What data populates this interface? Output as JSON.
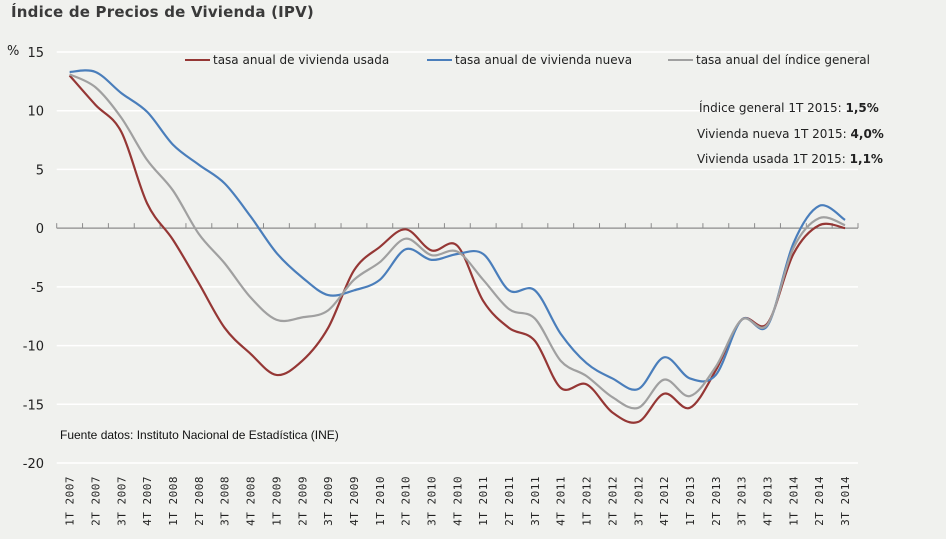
{
  "chart_data": {
    "type": "line",
    "title": "Índice de Precios de Vivienda (IPV)",
    "ylabel": "%",
    "xlabel": "",
    "ylim": [
      -20,
      15
    ],
    "yticks": [
      15,
      10,
      5,
      0,
      -5,
      -10,
      -15,
      -20
    ],
    "grid": true,
    "legend_position": "top",
    "categories": [
      "1T 2007",
      "2T 2007",
      "3T 2007",
      "4T 2007",
      "1T 2008",
      "2T 2008",
      "3T 2008",
      "4T 2008",
      "1T 2009",
      "2T 2009",
      "3T 2009",
      "4T 2009",
      "1T 2010",
      "2T 2010",
      "3T 2010",
      "4T 2010",
      "1T 2011",
      "2T 2011",
      "3T 2011",
      "4T 2011",
      "1T 2012",
      "2T 2012",
      "3T 2012",
      "4T 2012",
      "1T 2013",
      "2T 2013",
      "3T 2013",
      "4T 2013",
      "1T 2014",
      "2T 2014",
      "3T 2014"
    ],
    "series": [
      {
        "name": "tasa anual de vivienda usada",
        "color": "#953735",
        "values": [
          13.0,
          10.5,
          8.2,
          2.1,
          -1.0,
          -4.7,
          -8.5,
          -10.7,
          -12.5,
          -11.3,
          -8.5,
          -3.6,
          -1.6,
          -0.1,
          -1.9,
          -1.5,
          -6.2,
          -8.5,
          -9.6,
          -13.6,
          -13.3,
          -15.7,
          -16.5,
          -14.1,
          -15.3,
          -12.1,
          -7.8,
          -8.1,
          -2.2,
          0.25,
          0.0
        ]
      },
      {
        "name": "tasa anual de vivienda nueva",
        "color": "#4a7ebb",
        "values": [
          13.3,
          13.3,
          11.5,
          9.9,
          7.1,
          5.4,
          3.8,
          1.0,
          -2.1,
          -4.2,
          -5.7,
          -5.3,
          -4.4,
          -1.8,
          -2.7,
          -2.2,
          -2.2,
          -5.3,
          -5.3,
          -9.0,
          -11.5,
          -12.8,
          -13.7,
          -11.0,
          -12.8,
          -12.5,
          -7.8,
          -8.3,
          -1.3,
          1.9,
          0.7
        ]
      },
      {
        "name": "tasa anual del índice general",
        "color": "#a0a0a0",
        "values": [
          13.1,
          12.0,
          9.4,
          5.8,
          3.2,
          -0.5,
          -3.0,
          -5.9,
          -7.8,
          -7.6,
          -7.0,
          -4.4,
          -2.9,
          -0.9,
          -2.3,
          -2.0,
          -4.4,
          -6.9,
          -7.7,
          -11.3,
          -12.6,
          -14.4,
          -15.3,
          -12.9,
          -14.3,
          -11.8,
          -7.8,
          -8.2,
          -1.7,
          0.85,
          0.25
        ]
      }
    ],
    "annotations": [
      {
        "label": "Índice general 1T 2015: ",
        "value": "1,5%"
      },
      {
        "label": "Vivienda nueva 1T 2015: ",
        "value": "4,0%"
      },
      {
        "label": "Vivienda usada 1T 2015: ",
        "value": "1,1%"
      }
    ],
    "source": "Fuente datos: Instituto Nacional de Estadística (INE)"
  }
}
